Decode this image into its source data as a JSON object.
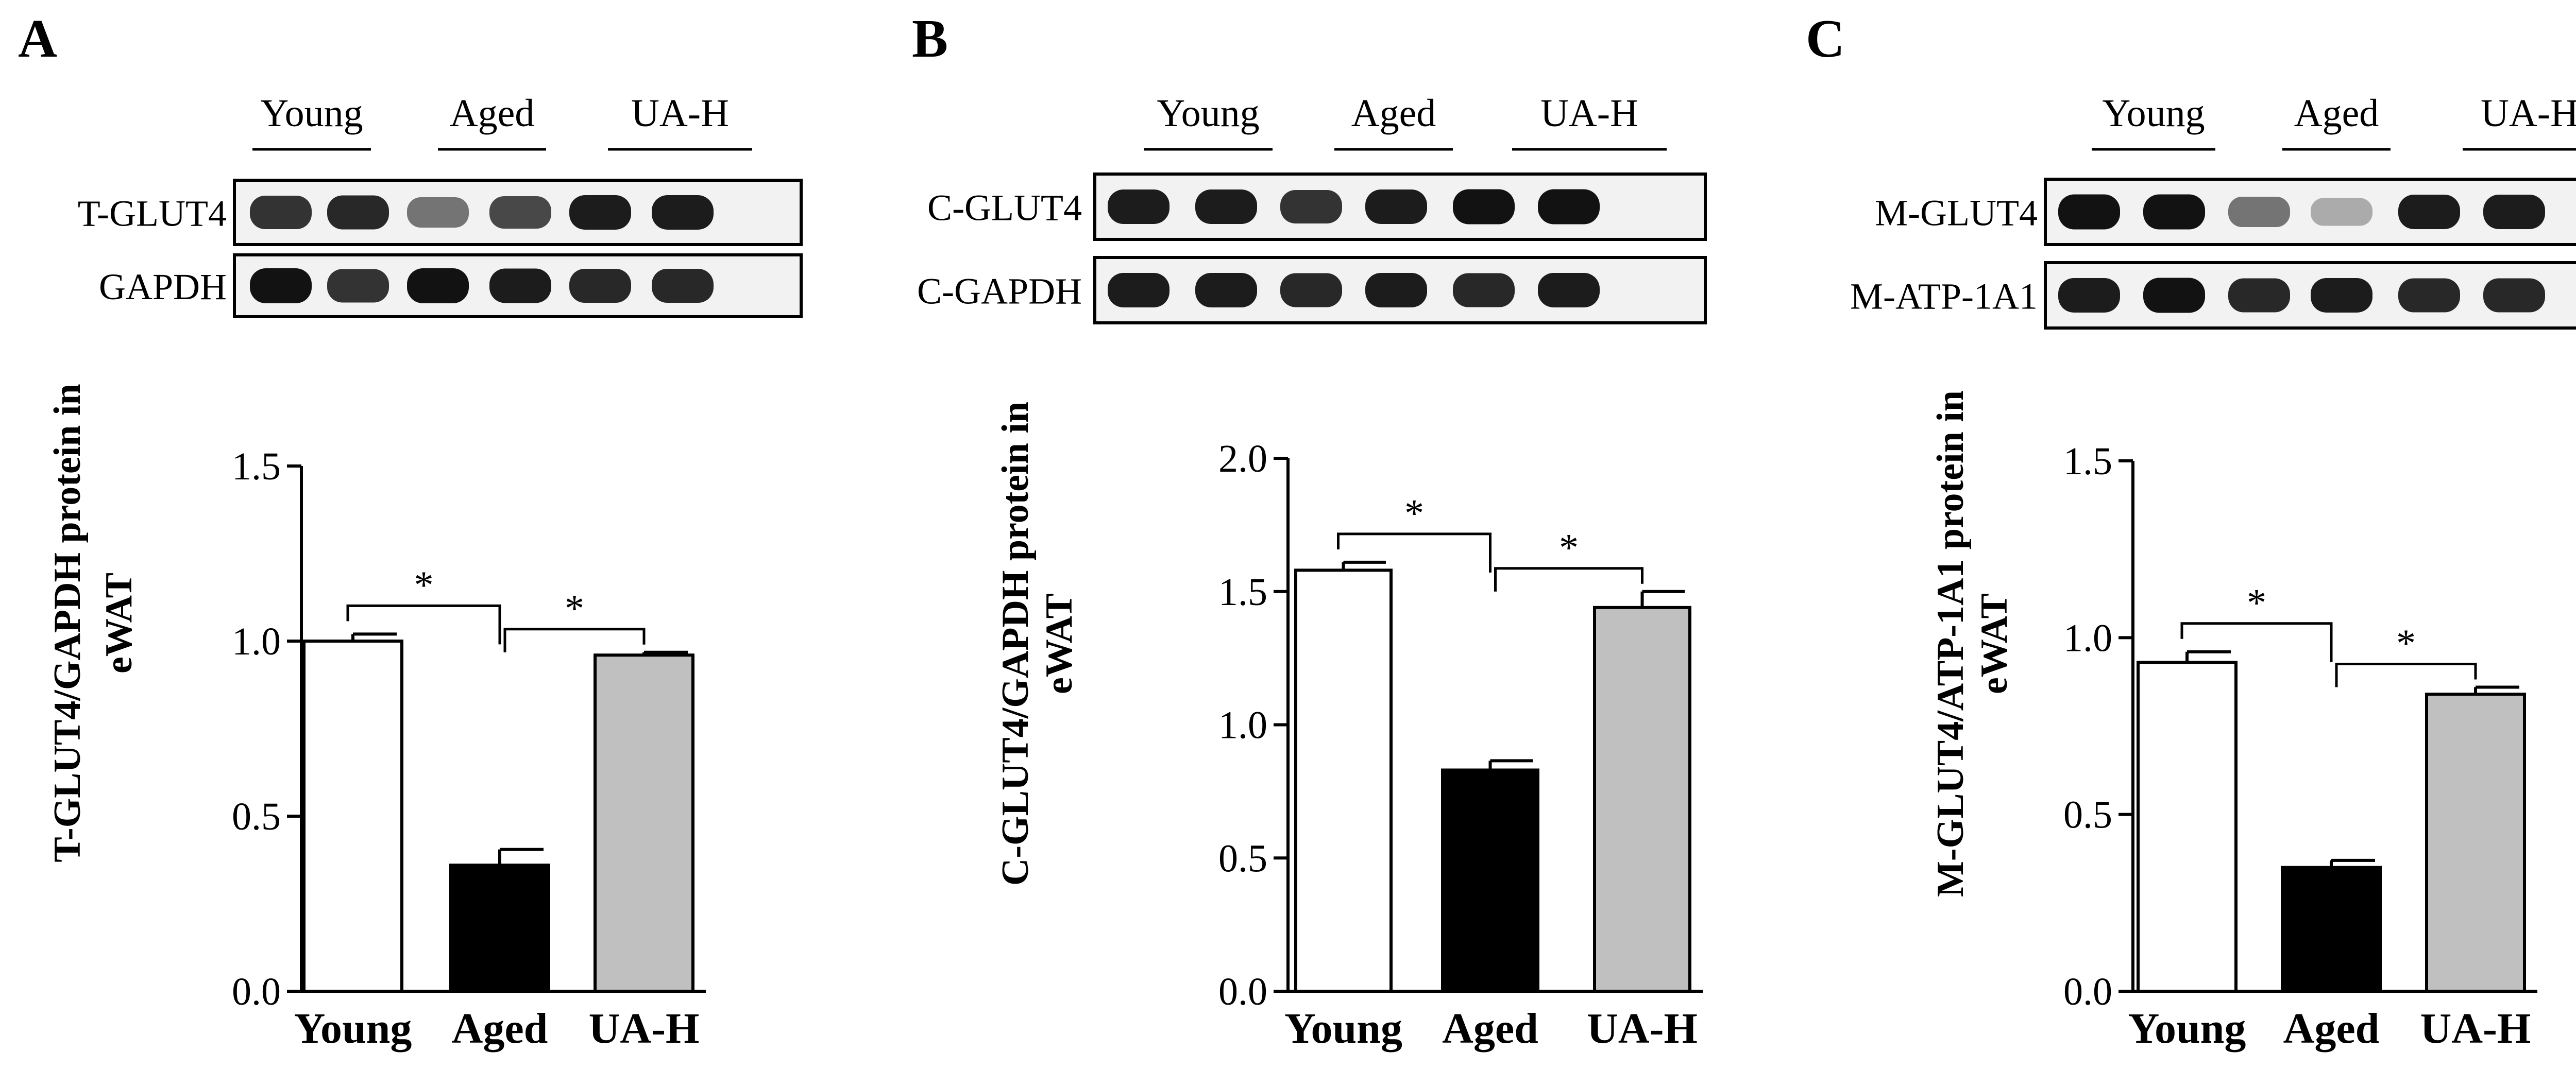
{
  "panels": [
    {
      "letter": "A",
      "lane_groups": [
        "Young",
        "Aged",
        "UA-H"
      ],
      "blot_rows": [
        {
          "label": "T-GLUT4",
          "intensities": [
            0.85,
            0.9,
            0.55,
            0.75,
            0.95,
            0.95
          ]
        },
        {
          "label": "GAPDH",
          "intensities": [
            1.0,
            0.85,
            1.0,
            0.95,
            0.9,
            0.9
          ]
        }
      ]
    },
    {
      "letter": "B",
      "lane_groups": [
        "Young",
        "Aged",
        "UA-H"
      ],
      "blot_rows": [
        {
          "label": "C-GLUT4",
          "intensities": [
            0.95,
            0.95,
            0.85,
            0.95,
            1.0,
            1.0
          ]
        },
        {
          "label": "C-GAPDH",
          "intensities": [
            0.95,
            0.95,
            0.9,
            0.95,
            0.9,
            0.95
          ]
        }
      ]
    },
    {
      "letter": "C",
      "lane_groups": [
        "Young",
        "Aged",
        "UA-H"
      ],
      "blot_rows": [
        {
          "label": "M-GLUT4",
          "intensities": [
            1.0,
            1.0,
            0.55,
            0.3,
            0.95,
            0.95
          ]
        },
        {
          "label": "M-ATP-1A1",
          "intensities": [
            0.95,
            1.0,
            0.9,
            0.95,
            0.9,
            0.9
          ]
        }
      ]
    }
  ],
  "chart_data": [
    {
      "type": "bar",
      "ylabel_line1": "T-GLUT4/GAPDH protein in",
      "ylabel_line2": "eWAT",
      "categories": [
        "Young",
        "Aged",
        "UA-H"
      ],
      "values": [
        1.0,
        0.36,
        0.96
      ],
      "errors": [
        0.02,
        0.045,
        0.008
      ],
      "colors": [
        "#ffffff",
        "#000000",
        "#c0c0c0"
      ],
      "ylim": [
        0,
        1.5
      ],
      "yticks": [
        "0.0",
        "0.5",
        "1.0",
        "1.5"
      ],
      "significance": [
        {
          "from": 0,
          "to": 1,
          "label": "*"
        },
        {
          "from": 1,
          "to": 2,
          "label": "*"
        }
      ]
    },
    {
      "type": "bar",
      "ylabel_line1": "C-GLUT4/GAPDH protein in",
      "ylabel_line2": "eWAT",
      "categories": [
        "Young",
        "Aged",
        "UA-H"
      ],
      "values": [
        1.58,
        0.83,
        1.44
      ],
      "errors": [
        0.03,
        0.035,
        0.06
      ],
      "colors": [
        "#ffffff",
        "#000000",
        "#c0c0c0"
      ],
      "ylim": [
        0,
        2.0
      ],
      "yticks": [
        "0.0",
        "0.5",
        "1.0",
        "1.5",
        "2.0"
      ],
      "significance": [
        {
          "from": 0,
          "to": 1,
          "label": "*"
        },
        {
          "from": 1,
          "to": 2,
          "label": "*"
        }
      ]
    },
    {
      "type": "bar",
      "ylabel_line1": "M-GLUT4/ATP-1A1 protein in",
      "ylabel_line2": "eWAT",
      "categories": [
        "Young",
        "Aged",
        "UA-H"
      ],
      "values": [
        0.93,
        0.35,
        0.84
      ],
      "errors": [
        0.03,
        0.02,
        0.02
      ],
      "colors": [
        "#ffffff",
        "#000000",
        "#c0c0c0"
      ],
      "ylim": [
        0,
        1.5
      ],
      "yticks": [
        "0.0",
        "0.5",
        "1.0",
        "1.5"
      ],
      "significance": [
        {
          "from": 0,
          "to": 1,
          "label": "*"
        },
        {
          "from": 1,
          "to": 2,
          "label": "*"
        }
      ]
    }
  ]
}
